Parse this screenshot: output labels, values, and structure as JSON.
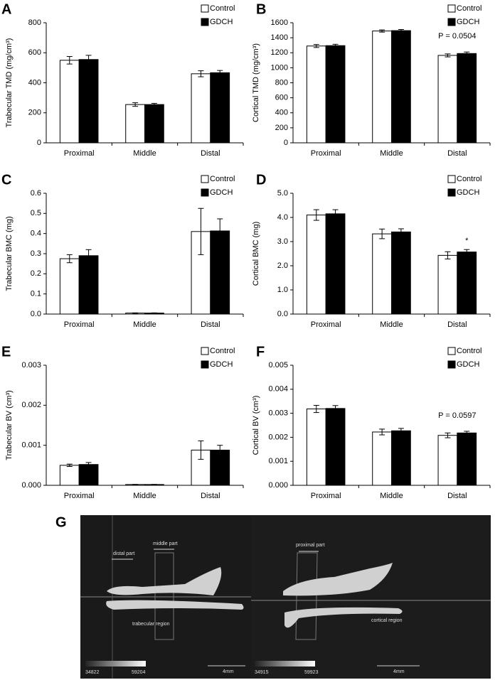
{
  "chart_data": [
    {
      "type": "bar",
      "panel_label": "A",
      "y_label": "Trabecular TMD (mg/cm³)",
      "categories": [
        "Proximal",
        "Middle",
        "Distal"
      ],
      "series": [
        {
          "name": "Control",
          "color": "#ffffff",
          "values": [
            550,
            255,
            460
          ],
          "errors": [
            25,
            12,
            20
          ]
        },
        {
          "name": "GDCH",
          "color": "#000000",
          "values": [
            555,
            255,
            467
          ],
          "errors": [
            28,
            8,
            15
          ]
        }
      ],
      "ylim": [
        0,
        800
      ],
      "yticks": [
        0,
        200,
        400,
        600,
        800
      ],
      "legend": "upper right",
      "annotations": []
    },
    {
      "type": "bar",
      "panel_label": "B",
      "y_label": "Cortical TMD (mg/cm³)",
      "categories": [
        "Proximal",
        "Middle",
        "Distal"
      ],
      "series": [
        {
          "name": "Control",
          "color": "#ffffff",
          "values": [
            1290,
            1490,
            1165
          ],
          "errors": [
            20,
            15,
            20
          ]
        },
        {
          "name": "GDCH",
          "color": "#000000",
          "values": [
            1295,
            1495,
            1190
          ],
          "errors": [
            18,
            15,
            20
          ]
        }
      ],
      "ylim": [
        0,
        1600
      ],
      "yticks": [
        0,
        200,
        400,
        600,
        800,
        1000,
        1200,
        1400,
        1600
      ],
      "legend": "upper right",
      "annotations": [
        "P = 0.0504"
      ]
    },
    {
      "type": "bar",
      "panel_label": "C",
      "y_label": "Trabecular BMC (mg)",
      "categories": [
        "Proximal",
        "Middle",
        "Distal"
      ],
      "series": [
        {
          "name": "Control",
          "color": "#ffffff",
          "values": [
            0.275,
            0.005,
            0.41
          ],
          "errors": [
            0.02,
            0.001,
            0.115
          ]
        },
        {
          "name": "GDCH",
          "color": "#000000",
          "values": [
            0.29,
            0.005,
            0.413
          ],
          "errors": [
            0.03,
            0.001,
            0.06
          ]
        }
      ],
      "ylim": [
        0,
        0.6
      ],
      "yticks": [
        {
          "value": 0,
          "label": "0.0"
        },
        0.1,
        0.2,
        0.3,
        0.4,
        0.5,
        0.6
      ],
      "legend": "upper right",
      "annotations": []
    },
    {
      "type": "bar",
      "panel_label": "D",
      "y_label": "Cortical BMC (mg)",
      "categories": [
        "Proximal",
        "Middle",
        "Distal"
      ],
      "series": [
        {
          "name": "Control",
          "color": "#ffffff",
          "values": [
            4.1,
            3.32,
            2.43
          ],
          "errors": [
            0.22,
            0.2,
            0.15
          ]
        },
        {
          "name": "GDCH",
          "color": "#000000",
          "values": [
            4.15,
            3.4,
            2.57
          ],
          "errors": [
            0.17,
            0.13,
            0.1
          ]
        }
      ],
      "ylim": [
        0,
        5
      ],
      "yticks": [
        {
          "value": 0,
          "label": "0.0"
        },
        {
          "value": 1,
          "label": "1.0"
        },
        {
          "value": 2,
          "label": "2.0"
        },
        {
          "value": 3,
          "label": "3.0"
        },
        {
          "value": 4,
          "label": "4.0"
        },
        {
          "value": 5,
          "label": "5.0"
        }
      ],
      "legend": "upper right",
      "annotations": [
        "*"
      ]
    },
    {
      "type": "bar",
      "panel_label": "E",
      "y_label": "Trabecular BV (cm³)",
      "categories": [
        "Proximal",
        "Middle",
        "Distal"
      ],
      "series": [
        {
          "name": "Control",
          "color": "#ffffff",
          "values": [
            0.0005,
            2e-05,
            0.00088
          ],
          "errors": [
            3e-05,
            3e-06,
            0.00023
          ]
        },
        {
          "name": "GDCH",
          "color": "#000000",
          "values": [
            0.00052,
            2e-05,
            0.00088
          ],
          "errors": [
            5e-05,
            3e-06,
            0.00012
          ]
        }
      ],
      "ylim": [
        0,
        0.003
      ],
      "yticks": [
        {
          "value": 0,
          "label": "0.000"
        },
        0.001,
        0.002,
        0.003
      ],
      "legend": "upper right",
      "annotations": []
    },
    {
      "type": "bar",
      "panel_label": "F",
      "y_label": "Cortical BV (cm³)",
      "categories": [
        "Proximal",
        "Middle",
        "Distal"
      ],
      "series": [
        {
          "name": "Control",
          "color": "#ffffff",
          "values": [
            0.00318,
            0.00222,
            0.00208
          ],
          "errors": [
            0.00015,
            0.00012,
            0.0001
          ]
        },
        {
          "name": "GDCH",
          "color": "#000000",
          "values": [
            0.0032,
            0.00227,
            0.00218
          ],
          "errors": [
            0.00012,
            0.0001,
            7e-05
          ]
        }
      ],
      "ylim": [
        0,
        0.005
      ],
      "yticks": [
        {
          "value": 0,
          "label": "0.000"
        },
        0.001,
        0.002,
        0.003,
        0.004,
        0.005
      ],
      "legend": "upper right",
      "annotations": [
        "P = 0.0597"
      ]
    }
  ],
  "image_panel": {
    "panel_label": "G",
    "texts": [
      "distal part",
      "middle part",
      "trabecular region",
      "34822",
      "59204",
      "4mm",
      "proximal part",
      "cortical region",
      "34915",
      "59923",
      "4mm"
    ]
  }
}
